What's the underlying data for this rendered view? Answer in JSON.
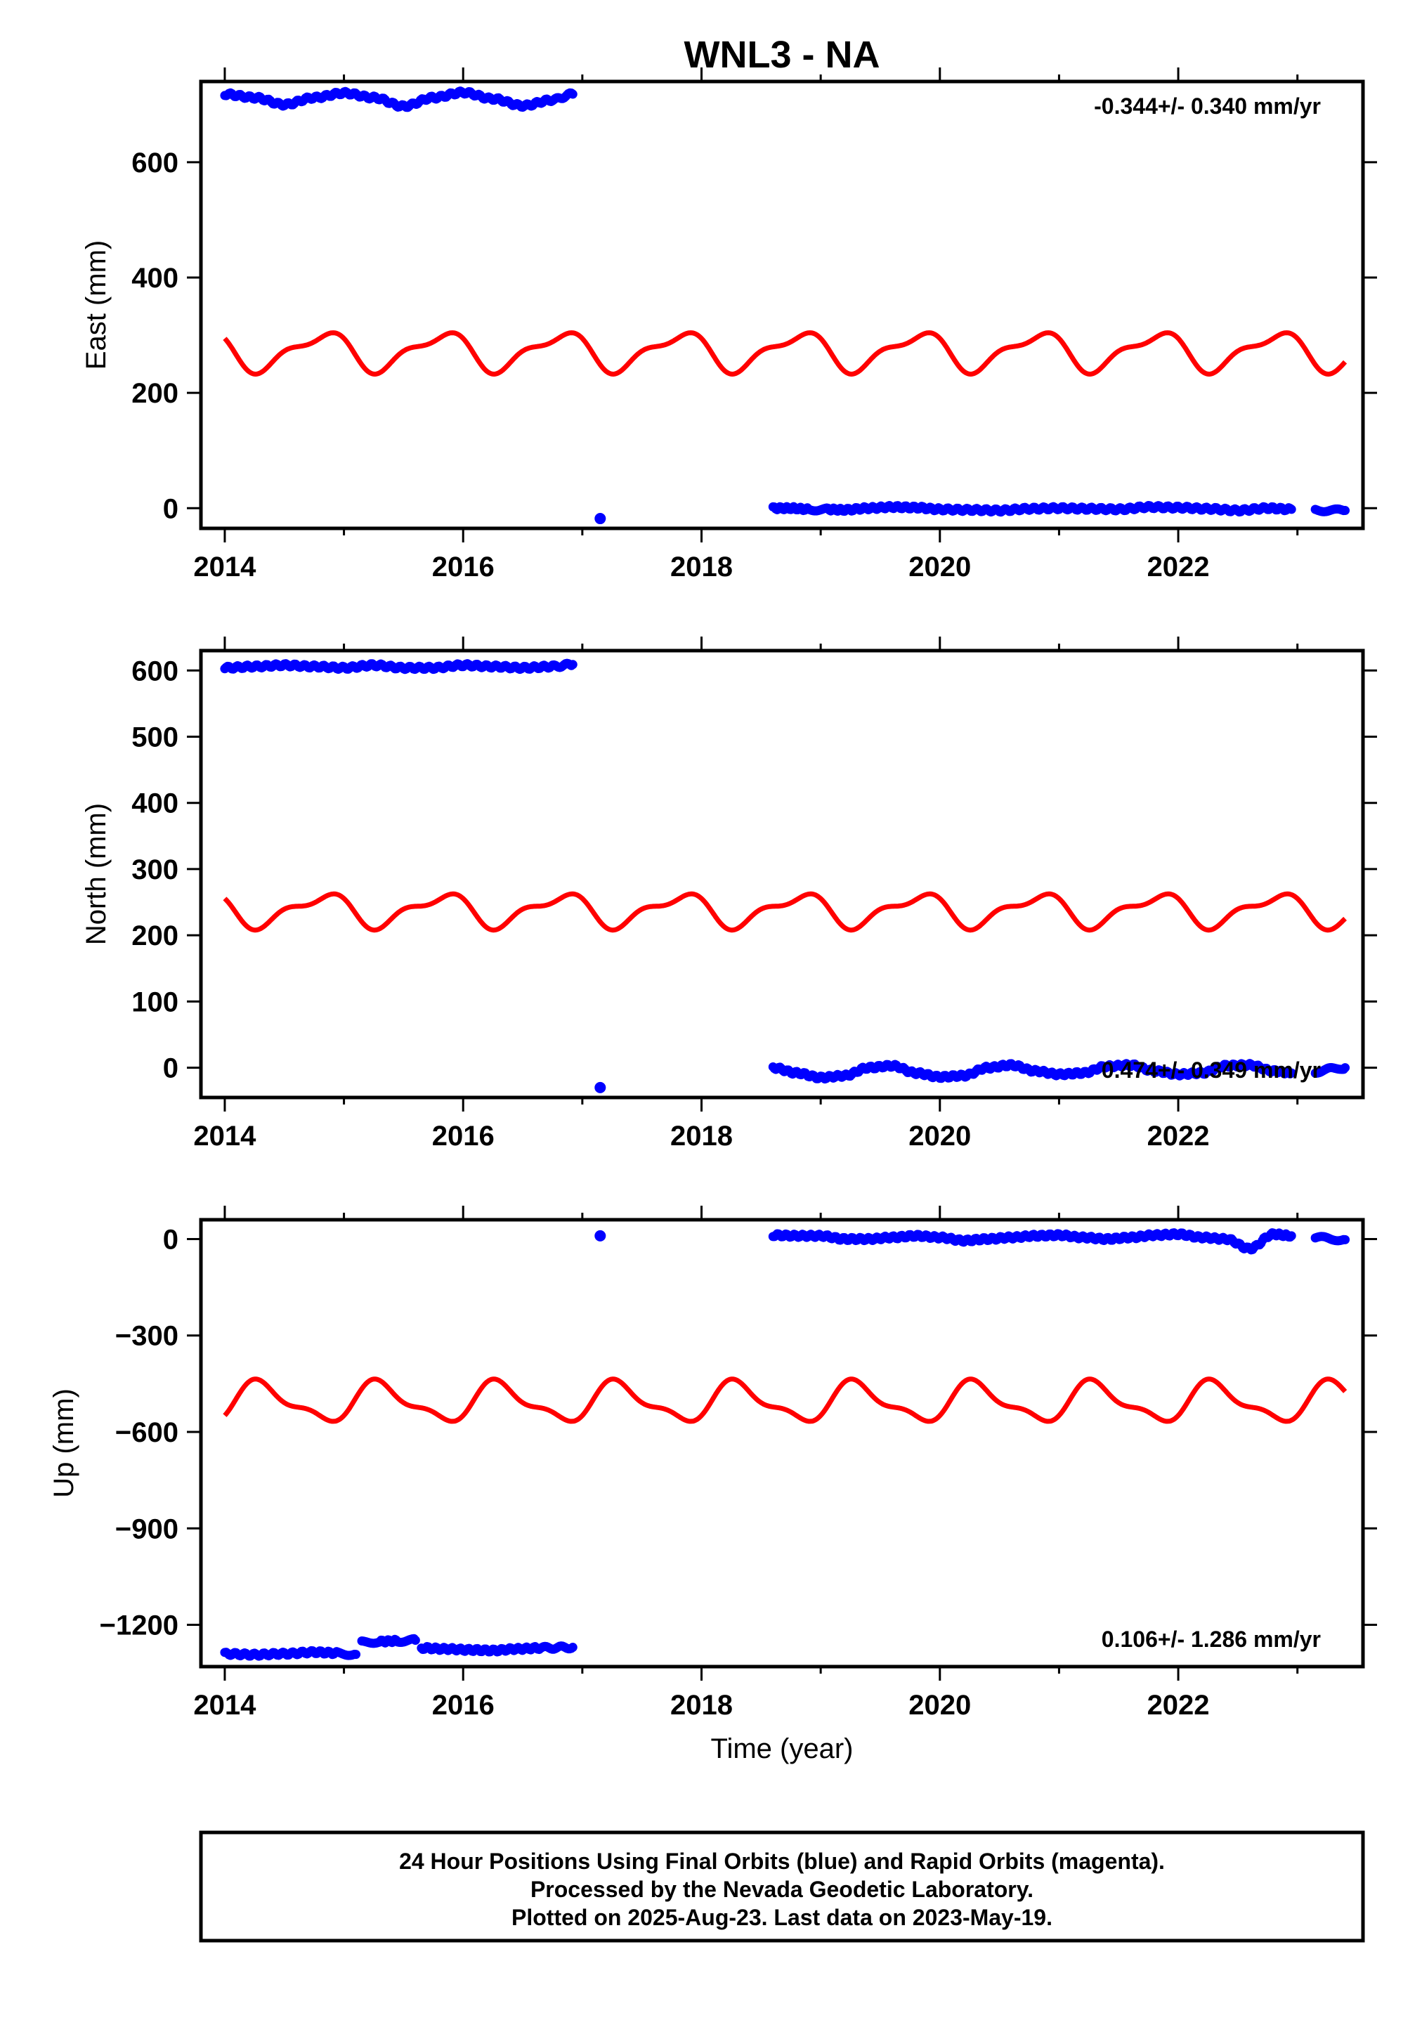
{
  "figure": {
    "title": "WNL3 - NA",
    "colors": {
      "final_orbit": "#0000ff",
      "model_fit": "#ff0000",
      "frame": "#000000"
    }
  },
  "footer": {
    "line1": "24 Hour Positions Using Final Orbits (blue) and Rapid Orbits (magenta).",
    "line2": "Processed by the Nevada Geodetic Laboratory.",
    "line3": "Plotted on 2025-Aug-23. Last data on 2023-May-19."
  },
  "chart_data": [
    {
      "id": "east",
      "type": "scatter",
      "ylabel": "East (mm)",
      "xlabel": "",
      "rate_label": "-0.344+/- 0.340 mm/yr",
      "rate_position": "top-right",
      "xlim": [
        2013.8,
        2023.55
      ],
      "ylim": [
        -35,
        740
      ],
      "xticks": [
        2014,
        2016,
        2018,
        2020,
        2022
      ],
      "yticks": [
        0,
        200,
        400,
        600
      ],
      "grid": false,
      "series": [
        {
          "kind": "points",
          "segments": [
            {
              "x": [
                2014.0,
                2014.25,
                2014.5,
                2014.75,
                2015.0,
                2015.25,
                2015.5,
                2015.75,
                2016.0,
                2016.25,
                2016.5,
                2016.75,
                2016.92
              ],
              "y": [
                718,
                712,
                700,
                712,
                720,
                712,
                697,
                712,
                721,
                710,
                698,
                708,
                718
              ]
            },
            {
              "x": [
                2017.15
              ],
              "y": [
                -18
              ]
            },
            {
              "x": [
                2018.6,
                2018.75,
                2018.9,
                2019.05,
                2019.2,
                2019.4,
                2019.6,
                2019.8,
                2020.0,
                2020.25,
                2020.5,
                2020.75,
                2021.0,
                2021.25,
                2021.5,
                2021.75,
                2022.0,
                2022.25,
                2022.5,
                2022.75,
                2022.95
              ],
              "y": [
                0,
                0,
                -2,
                -2,
                -3,
                0,
                2,
                1,
                -2,
                -3,
                -4,
                -1,
                0,
                -1,
                -2,
                2,
                1,
                -1,
                -4,
                0,
                -2
              ]
            },
            {
              "x": [
                2023.15,
                2023.3,
                2023.4
              ],
              "y": [
                -3,
                -4,
                -4
              ]
            }
          ]
        },
        {
          "kind": "model_fit",
          "mean": 272,
          "annual": [
            30,
            1.2
          ],
          "semiannual": [
            12,
            0.3
          ],
          "x_range": [
            2014.0,
            2023.4
          ]
        }
      ]
    },
    {
      "id": "north",
      "type": "scatter",
      "ylabel": "North (mm)",
      "xlabel": "",
      "rate_label": "0.474+/- 0.349 mm/yr",
      "rate_position": "bottom-right",
      "xlim": [
        2013.8,
        2023.55
      ],
      "ylim": [
        -45,
        630
      ],
      "xticks": [
        2014,
        2016,
        2018,
        2020,
        2022
      ],
      "yticks": [
        0,
        100,
        200,
        300,
        400,
        500,
        600
      ],
      "grid": false,
      "series": [
        {
          "kind": "points",
          "segments": [
            {
              "x": [
                2014.0,
                2014.25,
                2014.5,
                2014.75,
                2015.0,
                2015.25,
                2015.5,
                2015.75,
                2016.0,
                2016.25,
                2016.5,
                2016.75,
                2016.92
              ],
              "y": [
                604,
                606,
                608,
                606,
                604,
                608,
                604,
                604,
                608,
                606,
                604,
                606,
                609
              ]
            },
            {
              "x": [
                2017.15
              ],
              "y": [
                -30
              ]
            },
            {
              "x": [
                2018.6,
                2018.8,
                2019.0,
                2019.2,
                2019.4,
                2019.6,
                2019.8,
                2020.0,
                2020.2,
                2020.4,
                2020.6,
                2020.8,
                2021.0,
                2021.2,
                2021.4,
                2021.6,
                2021.8,
                2022.0,
                2022.2,
                2022.4,
                2022.6,
                2022.8,
                2022.95
              ],
              "y": [
                0,
                -8,
                -15,
                -12,
                0,
                3,
                -8,
                -14,
                -12,
                0,
                4,
                -5,
                -10,
                -8,
                2,
                4,
                -5,
                -10,
                -8,
                3,
                4,
                -5,
                -8
              ]
            },
            {
              "x": [
                2023.15,
                2023.3,
                2023.4
              ],
              "y": [
                -6,
                -2,
                0
              ]
            }
          ]
        },
        {
          "kind": "model_fit",
          "mean": 238,
          "annual": [
            22,
            1.2
          ],
          "semiannual": [
            10,
            0.3
          ],
          "x_range": [
            2014.0,
            2023.4
          ]
        }
      ]
    },
    {
      "id": "up",
      "type": "scatter",
      "ylabel": "Up (mm)",
      "xlabel": "Time (year)",
      "rate_label": "0.106+/- 1.286 mm/yr",
      "rate_position": "bottom-right",
      "xlim": [
        2013.8,
        2023.55
      ],
      "ylim": [
        -1330,
        60
      ],
      "xticks": [
        2014,
        2016,
        2018,
        2020,
        2022
      ],
      "yticks": [
        -1200,
        -900,
        -600,
        -300,
        0
      ],
      "yticklabels": [
        "−1200",
        "−900",
        "−600",
        "−300",
        "0"
      ],
      "grid": false,
      "series": [
        {
          "kind": "points",
          "segments": [
            {
              "x": [
                2014.0,
                2014.25,
                2014.5,
                2014.75,
                2014.95,
                2015.1
              ],
              "y": [
                -1290,
                -1293,
                -1290,
                -1285,
                -1288,
                -1292
              ]
            },
            {
              "x": [
                2015.15,
                2015.3,
                2015.45,
                2015.6
              ],
              "y": [
                -1255,
                -1252,
                -1250,
                -1248
              ]
            },
            {
              "x": [
                2015.65,
                2015.85,
                2016.05,
                2016.25,
                2016.45,
                2016.65,
                2016.92
              ],
              "y": [
                -1272,
                -1275,
                -1278,
                -1280,
                -1275,
                -1272,
                -1270
              ]
            },
            {
              "x": [
                2017.15
              ],
              "y": [
                10
              ]
            },
            {
              "x": [
                2018.6,
                2018.8,
                2019.0,
                2019.2,
                2019.4,
                2019.6,
                2019.8,
                2020.0,
                2020.2,
                2020.4,
                2020.6,
                2020.8,
                2021.0,
                2021.2,
                2021.4,
                2021.6,
                2021.8,
                2022.0,
                2022.2,
                2022.4,
                2022.6,
                2022.8,
                2022.95
              ],
              "y": [
                12,
                10,
                10,
                0,
                0,
                5,
                10,
                5,
                -5,
                0,
                5,
                10,
                12,
                5,
                0,
                5,
                12,
                15,
                5,
                0,
                -30,
                15,
                10
              ]
            },
            {
              "x": [
                2023.15,
                2023.3,
                2023.4
              ],
              "y": [
                5,
                0,
                -2
              ]
            }
          ]
        },
        {
          "kind": "model_fit",
          "mean": -508,
          "annual": [
            -55,
            1.2
          ],
          "semiannual": [
            -22,
            0.3
          ],
          "x_range": [
            2014.0,
            2023.4
          ]
        }
      ]
    }
  ]
}
